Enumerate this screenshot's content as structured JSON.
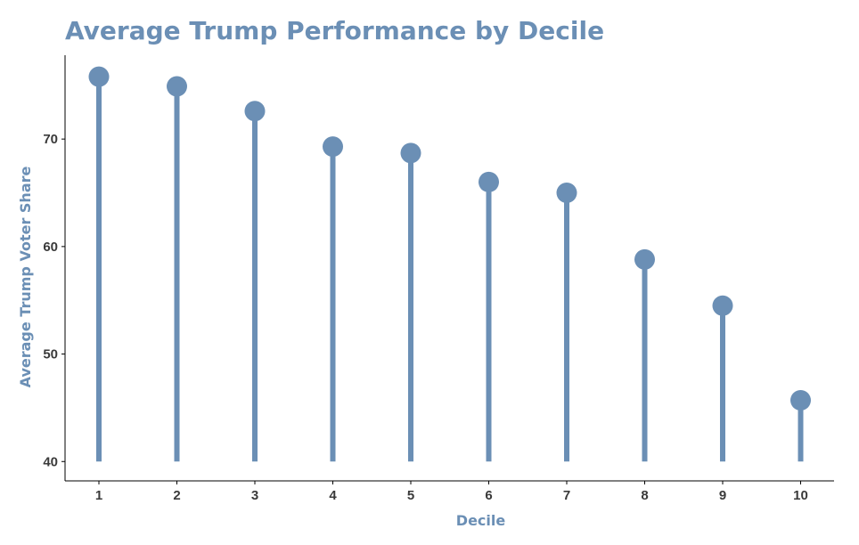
{
  "chart_data": {
    "type": "lollipop",
    "title": "Average Trump Performance by Decile",
    "xlabel": "Decile",
    "ylabel": "Average Trump Voter Share",
    "categories": [
      "1",
      "2",
      "3",
      "4",
      "5",
      "6",
      "7",
      "8",
      "9",
      "10"
    ],
    "values": [
      75.8,
      74.9,
      72.6,
      69.3,
      68.7,
      66.0,
      65.0,
      58.8,
      54.5,
      45.7
    ],
    "baseline": 40,
    "ylim": [
      38.2,
      77.8
    ],
    "yticks": [
      40,
      50,
      60,
      70
    ],
    "grid": false,
    "legend": "none",
    "colors": {
      "series": "#6b8fb5",
      "title": "#6b8fb5",
      "axis_title": "#6b8fb5",
      "tick_label": "#3a3a3a",
      "axis_line": "#000000"
    }
  }
}
